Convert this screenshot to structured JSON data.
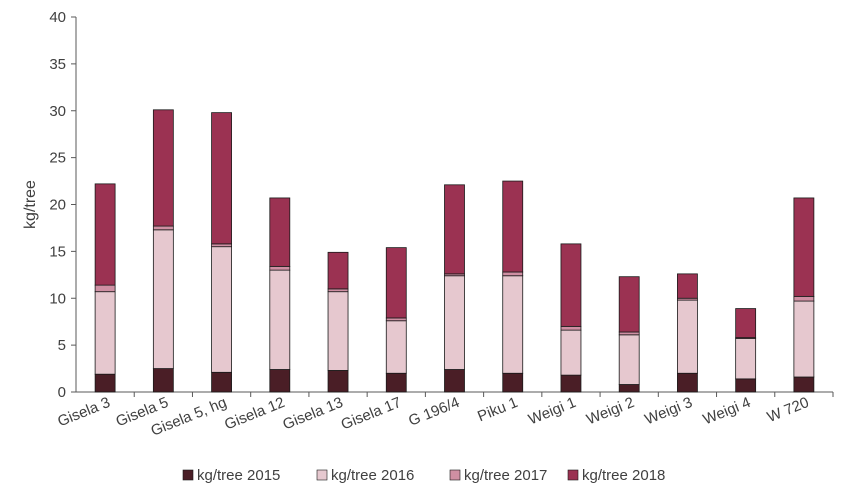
{
  "chart_data": {
    "type": "bar",
    "stacked": true,
    "title": "",
    "xlabel": "",
    "ylabel": "kg/tree",
    "ylim": [
      0,
      40
    ],
    "yticks": [
      0,
      5,
      10,
      15,
      20,
      25,
      30,
      35,
      40
    ],
    "grid": false,
    "legend_position": "bottom",
    "categories": [
      "Gisela 3",
      "Gisela 5",
      "Gisela 5, hg",
      "Gisela 12",
      "Gisela 13",
      "Gisela 17",
      "G 196/4",
      "Piku 1",
      "Weigi 1",
      "Weigi 2",
      "Weigi 3",
      "Weigi 4",
      "W 720"
    ],
    "series": [
      {
        "name": "kg/tree 2015",
        "color": "#4a1e26",
        "values": [
          1.9,
          2.5,
          2.1,
          2.4,
          2.3,
          2.0,
          2.4,
          2.0,
          1.8,
          0.8,
          2.0,
          1.4,
          1.6
        ]
      },
      {
        "name": "kg/tree 2016",
        "color": "#e6c8cf",
        "values": [
          8.8,
          14.8,
          13.4,
          10.6,
          8.4,
          5.6,
          10.0,
          10.4,
          4.8,
          5.3,
          7.8,
          4.3,
          8.1
        ]
      },
      {
        "name": "kg/tree 2017",
        "color": "#cf8fa3",
        "values": [
          0.7,
          0.4,
          0.3,
          0.4,
          0.3,
          0.3,
          0.2,
          0.4,
          0.4,
          0.3,
          0.2,
          0.1,
          0.5
        ]
      },
      {
        "name": "kg/tree 2018",
        "color": "#9b3252",
        "values": [
          10.8,
          12.4,
          14.0,
          7.3,
          3.9,
          7.5,
          9.5,
          9.7,
          8.8,
          5.9,
          2.6,
          3.1,
          10.5
        ]
      }
    ]
  }
}
